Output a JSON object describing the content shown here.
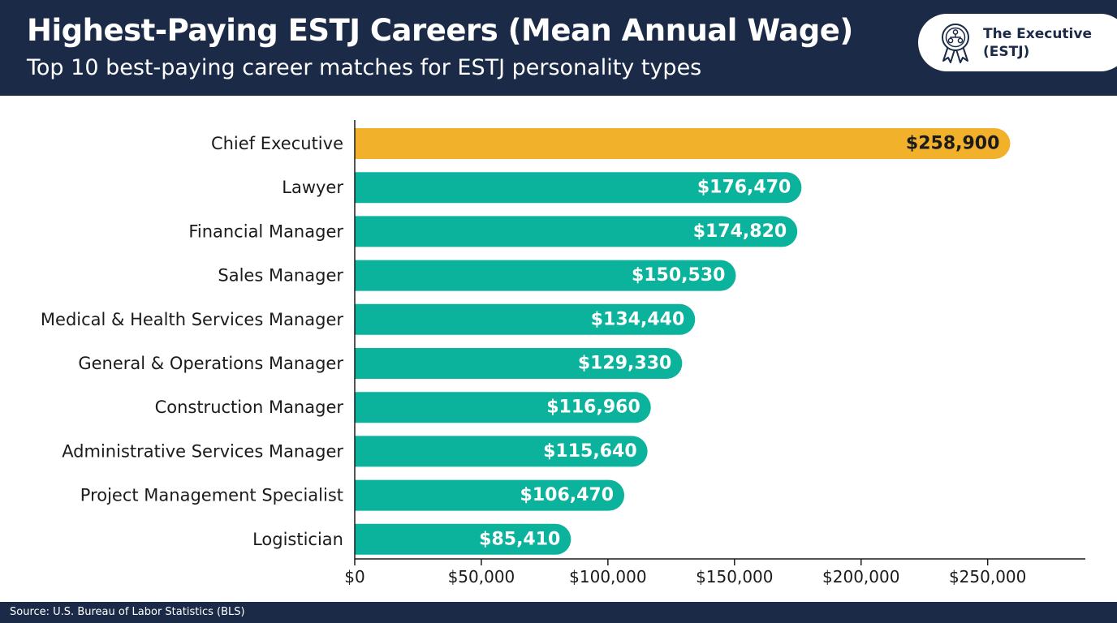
{
  "header": {
    "title": "Highest-Paying ESTJ Careers (Mean Annual Wage)",
    "subtitle": "Top 10 best-paying career matches for ESTJ personality types",
    "background_color": "#1b2a47"
  },
  "badge": {
    "icon": "award-ribbon-icon",
    "line1": "The Executive",
    "line2": "(ESTJ)"
  },
  "chart_data": {
    "type": "bar",
    "orientation": "horizontal",
    "categories": [
      "Chief Executive",
      "Lawyer",
      "Financial Manager",
      "Sales Manager",
      "Medical & Health Services Manager",
      "General & Operations Manager",
      "Construction Manager",
      "Administrative Services Manager",
      "Project Management Specialist",
      "Logistician"
    ],
    "values": [
      258900,
      176470,
      174820,
      150530,
      134440,
      129330,
      116960,
      115640,
      106470,
      85410
    ],
    "value_labels": [
      "$258,900",
      "$176,470",
      "$174,820",
      "$150,530",
      "$134,440",
      "$129,330",
      "$116,960",
      "$115,640",
      "$106,470",
      "$85,410"
    ],
    "xlim": [
      0,
      290000
    ],
    "x_ticks": [
      0,
      50000,
      100000,
      150000,
      200000,
      250000
    ],
    "x_tick_labels": [
      "$0",
      "$50,000",
      "$100,000",
      "$150,000",
      "$200,000",
      "$250,000"
    ],
    "grid": false,
    "colors": {
      "highlight": "#f2b12a",
      "default": "#0bb29c",
      "highlight_label": "#1b1b1b",
      "default_label": "#ffffff"
    },
    "highlight_index": 0
  },
  "footer": {
    "source": "Source: U.S. Bureau of Labor Statistics (BLS)"
  }
}
